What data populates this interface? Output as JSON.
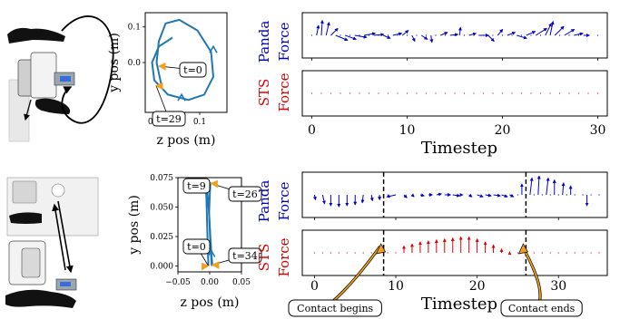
{
  "colors": {
    "panda": "#0000cc",
    "sts": "#dd0000",
    "traj": "#1f77b4",
    "marker": "#f0a01e",
    "black": "#000000"
  },
  "panels": [
    {
      "id": "top",
      "traj": {
        "xlabel": "z pos (m)",
        "ylabel": "y pos (m)",
        "xlim": [
          -0.02,
          0.16
        ],
        "ylim": [
          -0.14,
          0.14
        ],
        "xticks": [
          "0.0",
          "0.1"
        ],
        "yticks": [
          "0.0",
          "0.1"
        ],
        "xtick_values": [
          0.0,
          0.1
        ],
        "ytick_values": [
          0.0,
          0.1
        ],
        "path_x": [
          0.04,
          0.01,
          -0.005,
          0.0,
          0.03,
          0.075,
          0.11,
          0.13,
          0.125,
          0.095,
          0.055,
          0.025,
          0.01,
          0.005,
          0.015
        ],
        "path_y": [
          0.07,
          0.045,
          0.0,
          -0.05,
          -0.09,
          -0.105,
          -0.09,
          -0.04,
          0.03,
          0.09,
          0.12,
          0.11,
          0.06,
          0.0,
          -0.06
        ],
        "arrow_points": [
          {
            "x": 0.13,
            "y": 0.035
          },
          {
            "x": 0.06,
            "y": -0.1
          }
        ],
        "callouts": [
          {
            "label": "t=0",
            "point": [
              0.01,
              -0.01
            ]
          },
          {
            "label": "t=29",
            "point": [
              0.004,
              -0.065
            ]
          }
        ]
      },
      "labels": {
        "panda_1": "Panda",
        "panda_2": "Force",
        "sts_1": "STS",
        "sts_2": "Force"
      },
      "timeline": {
        "xlabel": "Timestep",
        "xlim": [
          -1,
          31
        ],
        "xticks": [
          "0",
          "10",
          "20",
          "30"
        ],
        "xtick_values": [
          0,
          10,
          20,
          30
        ],
        "panda_force": [
          {
            "t": 0.5,
            "dx": 0.1,
            "dy": 0.5
          },
          {
            "t": 1.0,
            "dx": 0.05,
            "dy": 0.75
          },
          {
            "t": 1.5,
            "dx": 0.15,
            "dy": 0.65
          },
          {
            "t": 2.0,
            "dx": 0.35,
            "dy": 0.35
          },
          {
            "t": 2.5,
            "dx": 0.6,
            "dy": -0.25
          },
          {
            "t": 3.5,
            "dx": 0.55,
            "dy": -0.2
          },
          {
            "t": 4.5,
            "dx": 0.6,
            "dy": -0.1
          },
          {
            "t": 5.5,
            "dx": 0.55,
            "dy": 0.1
          },
          {
            "t": 6.5,
            "dx": 0.5,
            "dy": 0.05
          },
          {
            "t": 7.5,
            "dx": 0.35,
            "dy": -0.15
          },
          {
            "t": 8.5,
            "dx": 0.45,
            "dy": 0.1
          },
          {
            "t": 9.5,
            "dx": 0.3,
            "dy": 0.25
          },
          {
            "t": 10.5,
            "dx": 0.15,
            "dy": -0.3
          },
          {
            "t": 11.5,
            "dx": 0.3,
            "dy": -0.2
          },
          {
            "t": 12.5,
            "dx": 0.05,
            "dy": -0.35
          },
          {
            "t": 13.5,
            "dx": 0.35,
            "dy": 0.15
          },
          {
            "t": 14.5,
            "dx": 0.4,
            "dy": 0.05
          },
          {
            "t": 15.5,
            "dx": 0.05,
            "dy": 0.4
          },
          {
            "t": 16.5,
            "dx": 0.35,
            "dy": 0.1
          },
          {
            "t": 17.5,
            "dx": 0.5,
            "dy": 0.0
          },
          {
            "t": 18.5,
            "dx": 0.3,
            "dy": -0.3
          },
          {
            "t": 19.5,
            "dx": 0.25,
            "dy": 0.3
          },
          {
            "t": 20.5,
            "dx": 0.4,
            "dy": 0.15
          },
          {
            "t": 21.5,
            "dx": 0.5,
            "dy": -0.15
          },
          {
            "t": 22.5,
            "dx": 0.45,
            "dy": 0.2
          },
          {
            "t": 23.5,
            "dx": 0.55,
            "dy": 0.35
          },
          {
            "t": 24.5,
            "dx": 0.3,
            "dy": 0.6
          },
          {
            "t": 25.0,
            "dx": 0.15,
            "dy": 0.7
          },
          {
            "t": 25.5,
            "dx": 0.45,
            "dy": 0.45
          },
          {
            "t": 26.5,
            "dx": 0.5,
            "dy": 0.3
          },
          {
            "t": 27.5,
            "dx": 0.45,
            "dy": 0.1
          },
          {
            "t": 28.5,
            "dx": 0.3,
            "dy": 0.0
          }
        ],
        "sts_force": []
      }
    },
    {
      "id": "bottom",
      "traj": {
        "xlabel": "z pos (m)",
        "ylabel": "y pos (m)",
        "xlim": [
          -0.05,
          0.05
        ],
        "ylim": [
          -0.005,
          0.075
        ],
        "xticks": [
          "−0.05",
          "0.00",
          "0.05"
        ],
        "yticks": [
          "0.000",
          "0.025",
          "0.050",
          "0.075"
        ],
        "xtick_values": [
          -0.05,
          0.0,
          0.05
        ],
        "ytick_values": [
          0.0,
          0.025,
          0.05,
          0.075
        ],
        "path_x": [
          -0.002,
          -0.003,
          -0.004,
          -0.005,
          -0.006,
          -0.004,
          -0.001,
          0.001,
          0.003,
          0.004,
          0.003
        ],
        "path_y": [
          0.0,
          0.015,
          0.035,
          0.055,
          0.071,
          0.065,
          0.045,
          0.025,
          0.008,
          0.002,
          0.0
        ],
        "path2_x": [
          0.001,
          -0.001,
          0.001,
          0.003
        ],
        "path2_y": [
          0.071,
          0.045,
          0.02,
          0.001
        ],
        "arrow_points": [
          {
            "x": 0.0025,
            "y": 0.01
          }
        ],
        "callouts": [
          {
            "label": "t=9",
            "point": [
              -0.006,
              0.069
            ]
          },
          {
            "label": "t=26",
            "point": [
              0.002,
              0.07
            ]
          },
          {
            "label": "t=0",
            "point": [
              -0.002,
              0.0
            ]
          },
          {
            "label": "t=34",
            "point": [
              0.004,
              0.001
            ]
          }
        ]
      },
      "labels": {
        "panda_1": "Panda",
        "panda_2": "Force",
        "sts_1": "STS",
        "sts_2": "Force"
      },
      "timeline": {
        "xlabel": "Timestep",
        "xlim": [
          -1.5,
          36
        ],
        "xticks": [
          "0",
          "10",
          "20",
          "30"
        ],
        "xtick_values": [
          0,
          10,
          20,
          30
        ],
        "events": [
          {
            "t": 8.5,
            "label": "Contact begins"
          },
          {
            "t": 26.0,
            "label": "Contact ends"
          }
        ],
        "panda_force": [
          {
            "t": 0.0,
            "dx": 0.05,
            "dy": -0.25
          },
          {
            "t": 1.0,
            "dx": 0.1,
            "dy": -0.45
          },
          {
            "t": 2.0,
            "dx": 0.0,
            "dy": -0.55
          },
          {
            "t": 3.0,
            "dx": 0.0,
            "dy": -0.6
          },
          {
            "t": 4.0,
            "dx": 0.0,
            "dy": -0.55
          },
          {
            "t": 5.0,
            "dx": 0.0,
            "dy": -0.5
          },
          {
            "t": 6.0,
            "dx": -0.05,
            "dy": -0.4
          },
          {
            "t": 7.0,
            "dx": 0.05,
            "dy": -0.3
          },
          {
            "t": 8.0,
            "dx": 0.0,
            "dy": -0.25
          },
          {
            "t": 10.0,
            "dx": -0.45,
            "dy": -0.1
          },
          {
            "t": 11.0,
            "dx": 0.15,
            "dy": -0.15
          },
          {
            "t": 12.0,
            "dx": 0.1,
            "dy": -0.1
          },
          {
            "t": 13.0,
            "dx": 0.2,
            "dy": -0.05
          },
          {
            "t": 14.0,
            "dx": 0.2,
            "dy": 0.0
          },
          {
            "t": 15.0,
            "dx": 0.25,
            "dy": 0.05
          },
          {
            "t": 16.0,
            "dx": 0.3,
            "dy": 0.0
          },
          {
            "t": 17.0,
            "dx": 0.35,
            "dy": -0.05
          },
          {
            "t": 18.0,
            "dx": 0.1,
            "dy": 0.0
          },
          {
            "t": 19.0,
            "dx": 0.15,
            "dy": -0.1
          },
          {
            "t": 20.0,
            "dx": 0.3,
            "dy": -0.1
          },
          {
            "t": 21.0,
            "dx": 0.3,
            "dy": -0.05
          },
          {
            "t": 22.0,
            "dx": 0.35,
            "dy": -0.05
          },
          {
            "t": 23.0,
            "dx": 0.3,
            "dy": -0.1
          },
          {
            "t": 24.0,
            "dx": 0.2,
            "dy": -0.1
          },
          {
            "t": 25.5,
            "dx": 0.0,
            "dy": 0.55
          },
          {
            "t": 26.5,
            "dx": 0.1,
            "dy": 0.85
          },
          {
            "t": 27.5,
            "dx": 0.05,
            "dy": 0.95
          },
          {
            "t": 28.5,
            "dx": 0.1,
            "dy": 0.85
          },
          {
            "t": 29.5,
            "dx": 0.0,
            "dy": 0.75
          },
          {
            "t": 30.5,
            "dx": 0.05,
            "dy": 0.6
          },
          {
            "t": 31.5,
            "dx": 0.0,
            "dy": 0.45
          },
          {
            "t": 33.5,
            "dx": 0.0,
            "dy": -0.55
          }
        ],
        "sts_force": [
          {
            "t": 11.0,
            "dx": 0.0,
            "dy": 0.35
          },
          {
            "t": 12.0,
            "dx": 0.0,
            "dy": 0.45
          },
          {
            "t": 13.0,
            "dx": 0.0,
            "dy": 0.55
          },
          {
            "t": 14.0,
            "dx": 0.0,
            "dy": 0.6
          },
          {
            "t": 15.0,
            "dx": 0.0,
            "dy": 0.65
          },
          {
            "t": 16.0,
            "dx": 0.0,
            "dy": 0.7
          },
          {
            "t": 17.0,
            "dx": 0.0,
            "dy": 0.75
          },
          {
            "t": 18.0,
            "dx": 0.0,
            "dy": 0.8
          },
          {
            "t": 19.0,
            "dx": 0.0,
            "dy": 0.8
          },
          {
            "t": 20.0,
            "dx": 0.0,
            "dy": 0.7
          },
          {
            "t": 21.0,
            "dx": 0.0,
            "dy": 0.55
          },
          {
            "t": 22.0,
            "dx": 0.0,
            "dy": 0.4
          },
          {
            "t": 23.0,
            "dx": 0.0,
            "dy": 0.2
          },
          {
            "t": 24.0,
            "dx": 0.0,
            "dy": 0.05
          }
        ]
      }
    }
  ]
}
